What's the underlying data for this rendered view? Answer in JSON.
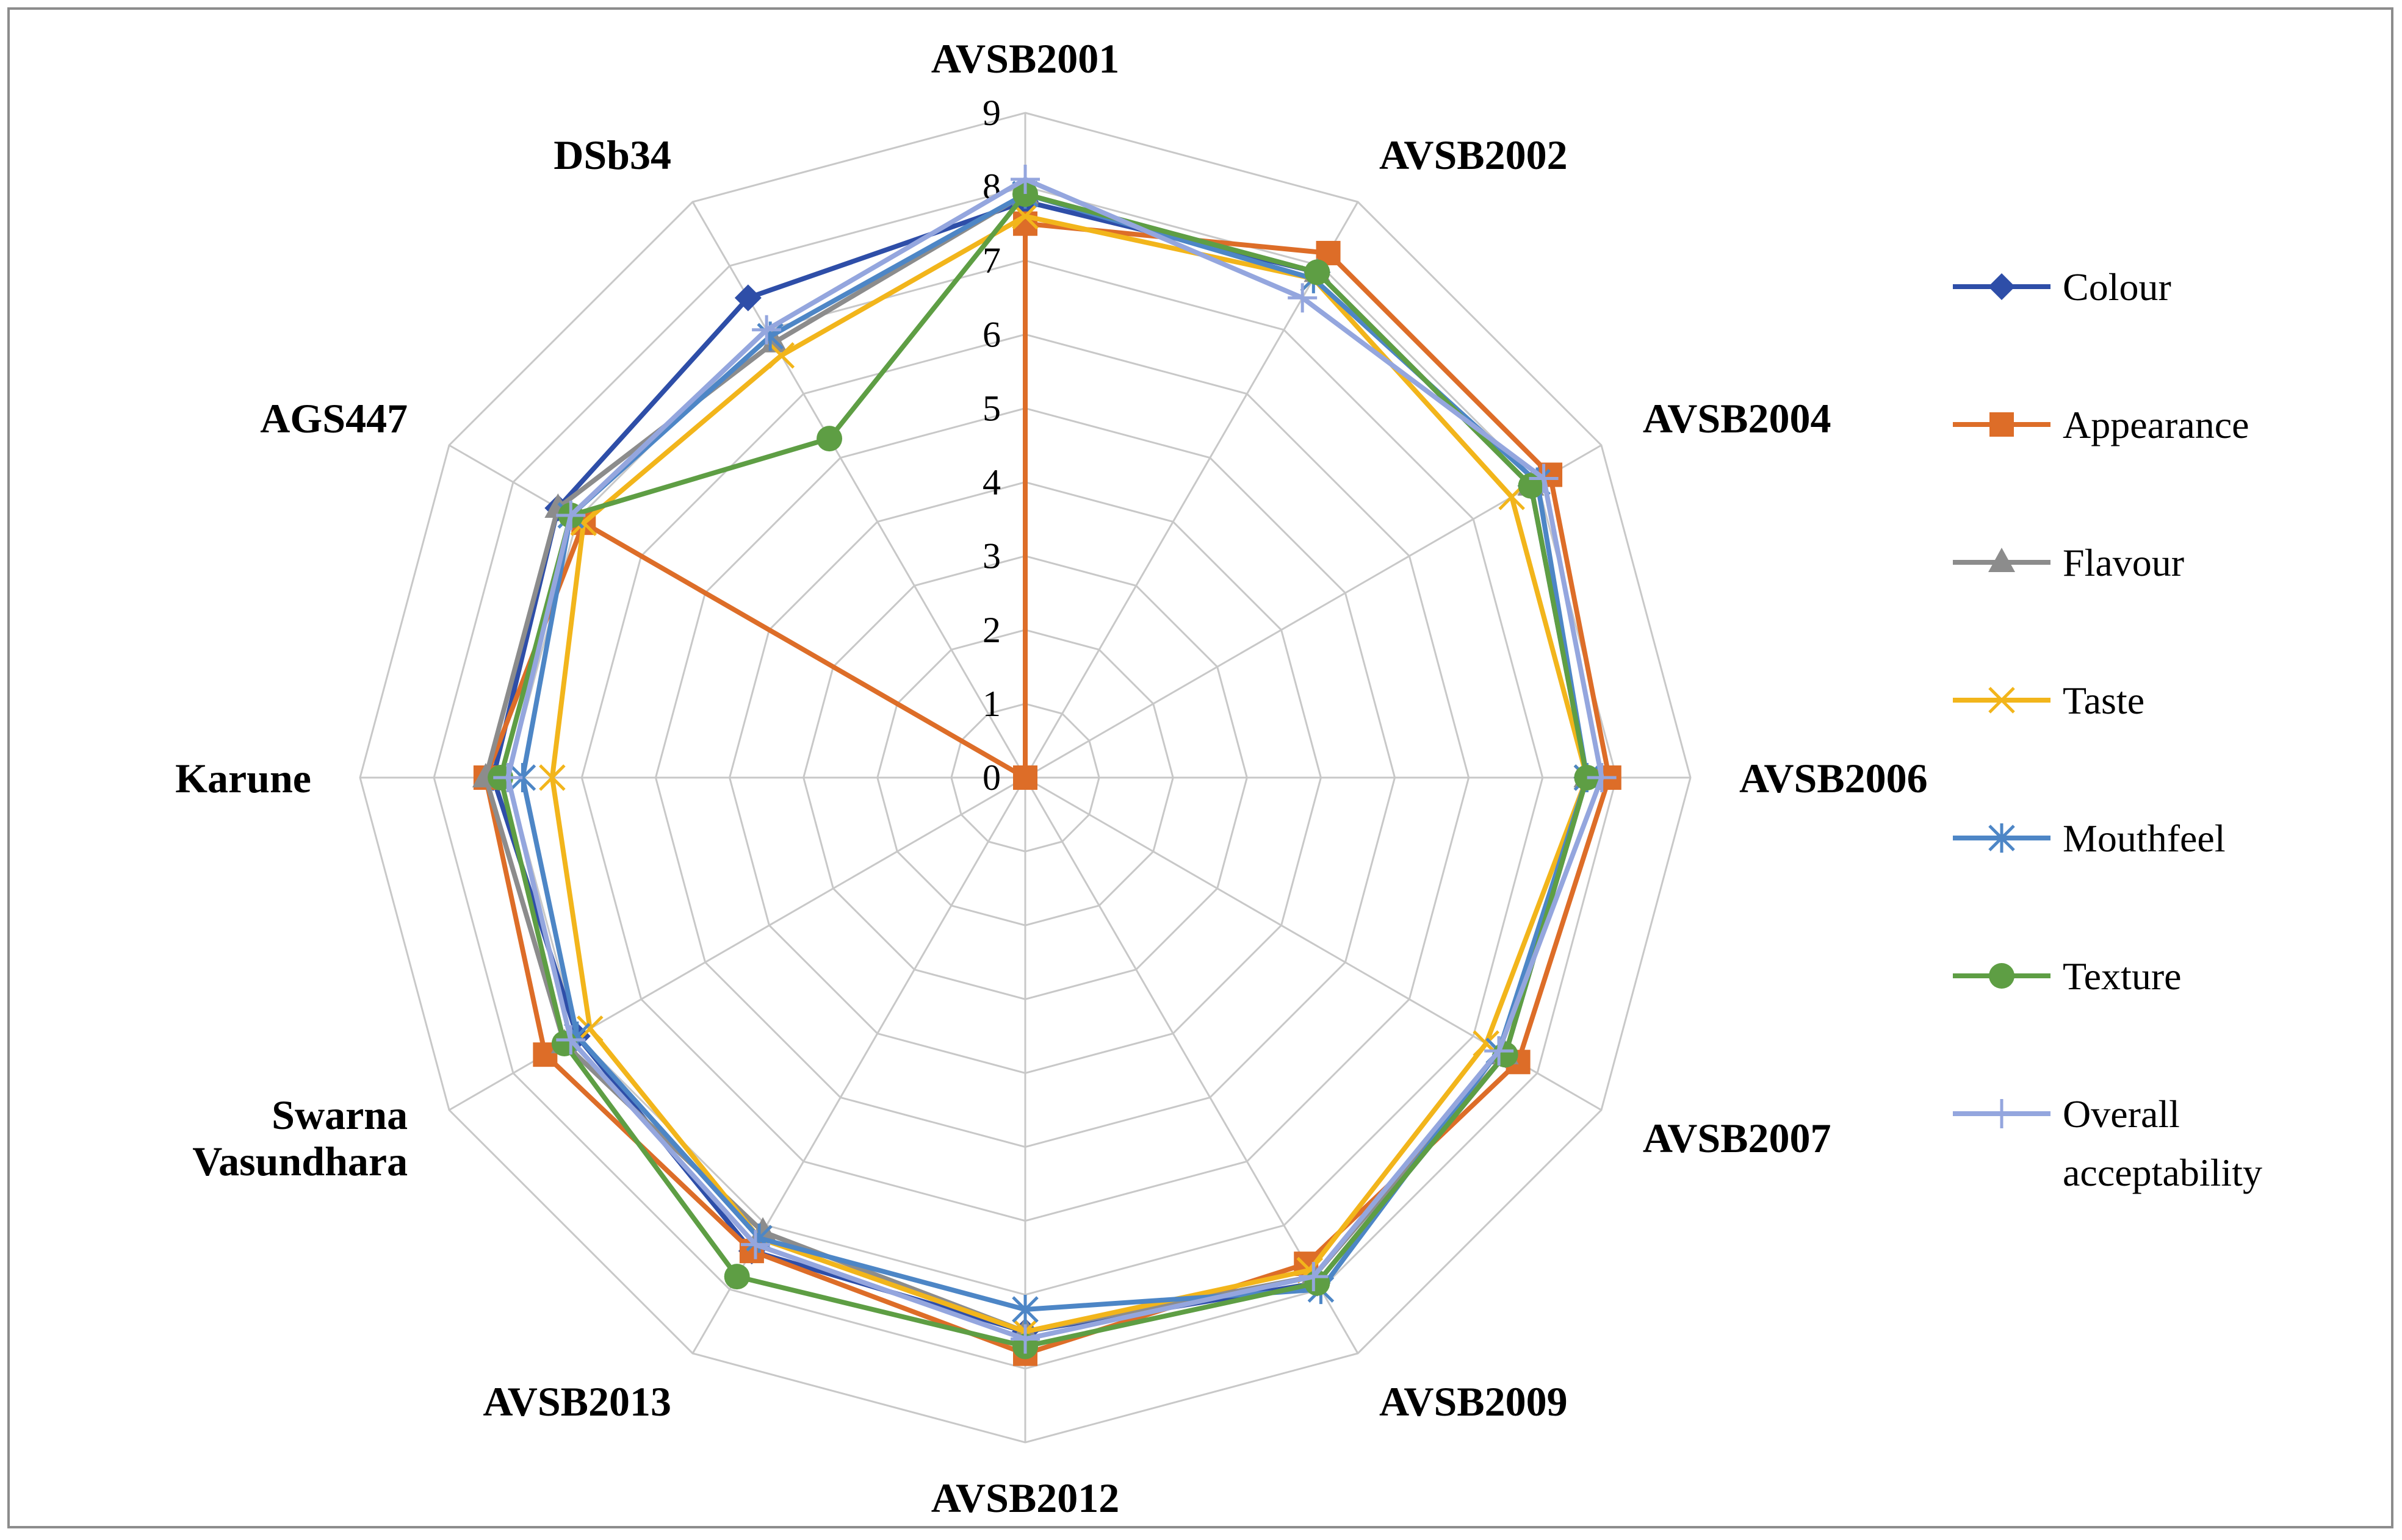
{
  "chart_data": {
    "type": "radar",
    "categories": [
      "AVSB2001",
      "AVSB2002",
      "AVSB2004",
      "AVSB2006",
      "AVSB2007",
      "AVSB2009",
      "AVSB2012",
      "AVSB2013",
      "Swarna Vasundhara",
      "Karune",
      "AGS447",
      "DSb34"
    ],
    "axis": {
      "min": 0,
      "max": 9,
      "step": 1,
      "ticks": [
        "0",
        "1",
        "2",
        "3",
        "4",
        "5",
        "6",
        "7",
        "8",
        "9"
      ]
    },
    "grid": true,
    "legend_position": "right",
    "series": [
      {
        "name": "Colour",
        "color": "#2E4EA8",
        "marker": "diamond",
        "values": [
          7.8,
          7.9,
          7.9,
          7.6,
          7.5,
          7.9,
          7.5,
          7.4,
          7.0,
          7.2,
          7.3,
          7.5
        ]
      },
      {
        "name": "Appearance",
        "color": "#DD6D28",
        "marker": "square",
        "values": [
          7.5,
          8.2,
          8.2,
          7.9,
          7.7,
          7.6,
          7.8,
          7.4,
          7.5,
          7.3,
          6.9,
          0
        ]
      },
      {
        "name": "Flavour",
        "color": "#8C8C8C",
        "marker": "triangle",
        "values": [
          7.9,
          7.9,
          7.9,
          7.6,
          7.5,
          7.8,
          7.5,
          7.1,
          7.2,
          7.3,
          7.3,
          6.8
        ]
      },
      {
        "name": "Taste",
        "color": "#F2B51B",
        "marker": "x",
        "values": [
          7.6,
          7.8,
          7.6,
          7.6,
          7.2,
          7.7,
          7.5,
          7.2,
          6.8,
          6.4,
          6.9,
          6.6
        ]
      },
      {
        "name": "Mouthfeel",
        "color": "#4D86C6",
        "marker": "asterisk",
        "values": [
          7.9,
          7.8,
          8.0,
          7.6,
          7.4,
          8.0,
          7.2,
          7.2,
          7.0,
          6.8,
          7.1,
          6.9
        ]
      },
      {
        "name": "Texture",
        "color": "#5E9E44",
        "marker": "circle",
        "values": [
          7.9,
          7.9,
          7.9,
          7.6,
          7.5,
          7.9,
          7.7,
          7.8,
          7.2,
          7.1,
          7.1,
          5.3
        ]
      },
      {
        "name": "Overall acceptability",
        "color": "#94A6DE",
        "marker": "plus",
        "values": [
          8.1,
          7.5,
          8.1,
          7.8,
          7.4,
          7.8,
          7.6,
          7.3,
          7.1,
          7.0,
          7.1,
          7.0
        ]
      }
    ]
  }
}
